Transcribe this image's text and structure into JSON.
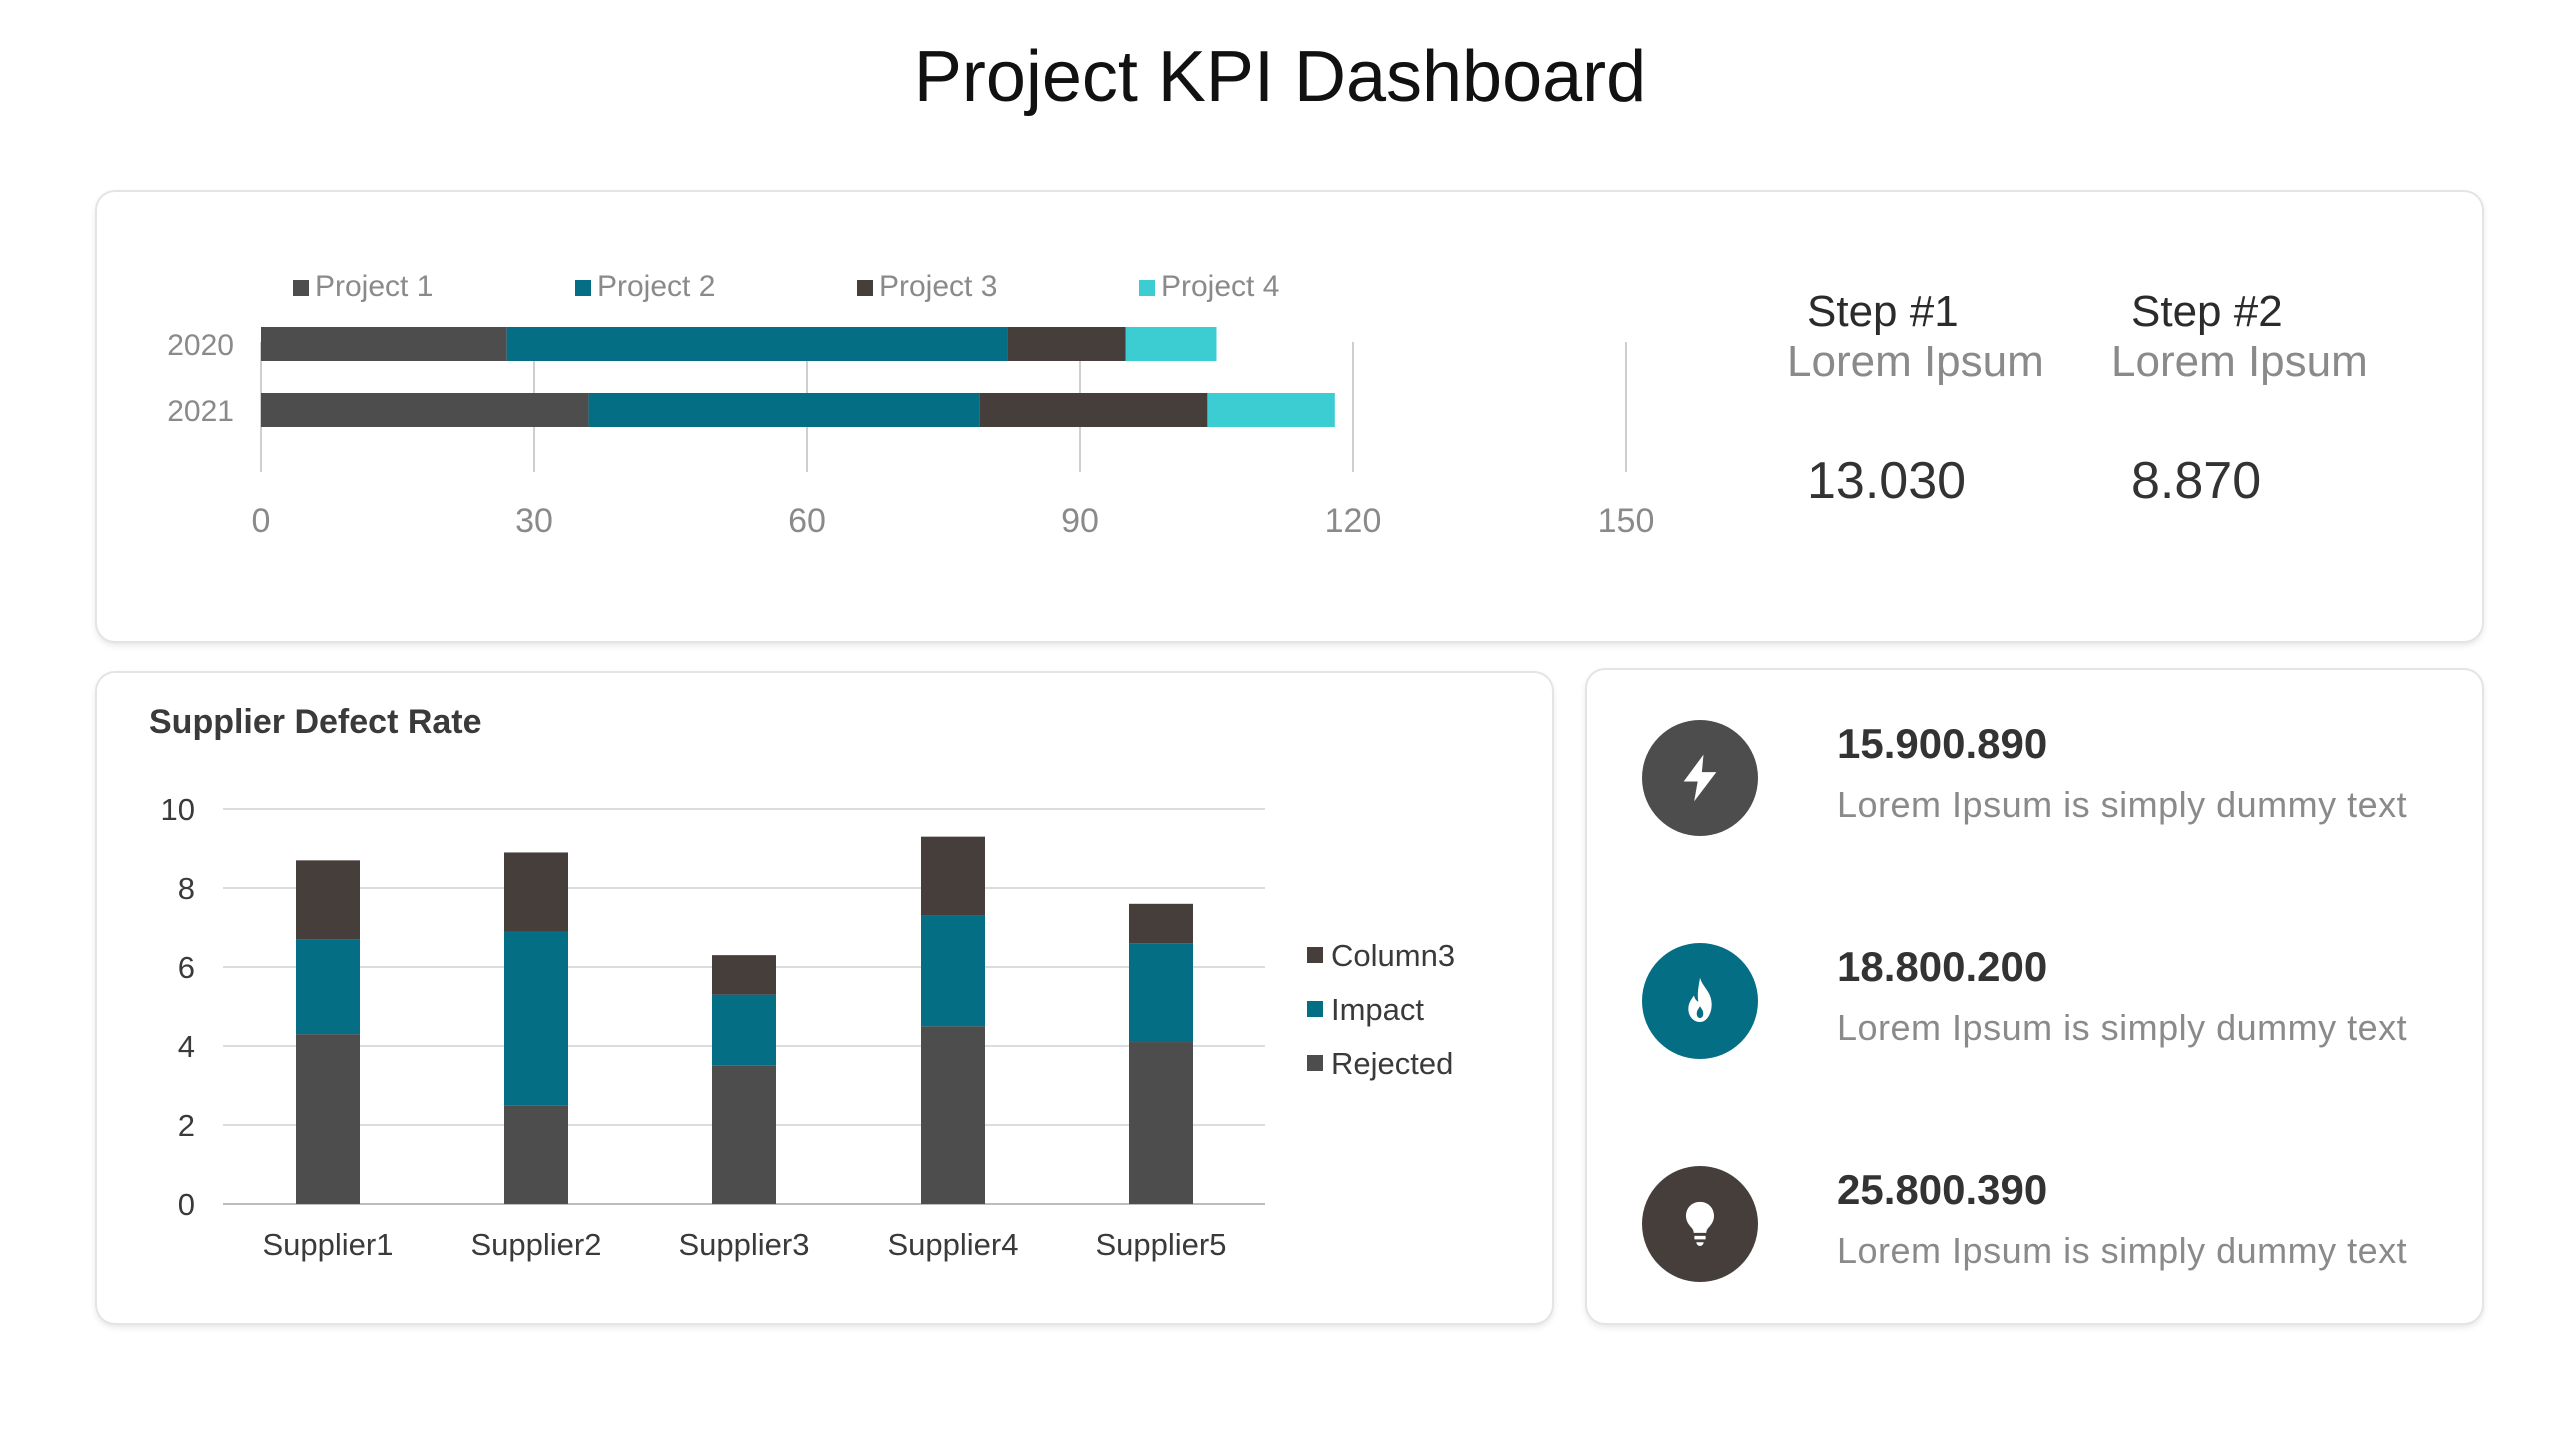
{
  "page": {
    "title": "Project KPI Dashboard"
  },
  "top_chart": {
    "chart_data": {
      "type": "bar",
      "orientation": "horizontal",
      "stacked": true,
      "categories": [
        "2020",
        "2021"
      ],
      "series": [
        {
          "name": "Project 1",
          "values": [
            27,
            36
          ],
          "color": "#4d4d4d"
        },
        {
          "name": "Project 2",
          "values": [
            55,
            43
          ],
          "color": "#036e84"
        },
        {
          "name": "Project 3",
          "values": [
            13,
            25
          ],
          "color": "#463e3b"
        },
        {
          "name": "Project 4",
          "values": [
            10,
            14
          ],
          "color": "#3ccdd2"
        }
      ],
      "xlim": [
        0,
        150
      ],
      "xticks": [
        "0",
        "30",
        "60",
        "90",
        "120",
        "150"
      ],
      "grid": true,
      "legend": "top"
    }
  },
  "steps": [
    {
      "label": "Step #1",
      "sub": "Lorem Ipsum",
      "value": "13.030"
    },
    {
      "label": "Step #2",
      "sub": "Lorem Ipsum",
      "value": "8.870"
    }
  ],
  "defect_chart": {
    "title": "Supplier Defect Rate",
    "chart_data": {
      "type": "bar",
      "stacked": true,
      "title": "Supplier Defect Rate",
      "categories": [
        "Supplier1",
        "Supplier2",
        "Supplier3",
        "Supplier4",
        "Supplier5"
      ],
      "series": [
        {
          "name": "Rejected",
          "values": [
            4.3,
            2.5,
            3.5,
            4.5,
            4.1
          ],
          "color": "#4d4d4d"
        },
        {
          "name": "Impact",
          "values": [
            2.4,
            4.4,
            1.8,
            2.8,
            2.5
          ],
          "color": "#036e84"
        },
        {
          "name": "Column3",
          "values": [
            2.0,
            2.0,
            1.0,
            2.0,
            1.0
          ],
          "color": "#463e3b"
        }
      ],
      "ylim": [
        0,
        10
      ],
      "yticks": [
        "0",
        "2",
        "4",
        "6",
        "8",
        "10"
      ],
      "grid": true,
      "legend": "right"
    }
  },
  "kpis": [
    {
      "value": "15.900.890",
      "text": "Lorem Ipsum is simply dummy text",
      "icon": "lightning-icon",
      "color": "#4d4d4d"
    },
    {
      "value": "18.800.200",
      "text": "Lorem Ipsum is simply dummy text",
      "icon": "flame-icon",
      "color": "#036e84"
    },
    {
      "value": "25.800.390",
      "text": "Lorem Ipsum is simply dummy text",
      "icon": "lightbulb-icon",
      "color": "#463e3b"
    }
  ]
}
